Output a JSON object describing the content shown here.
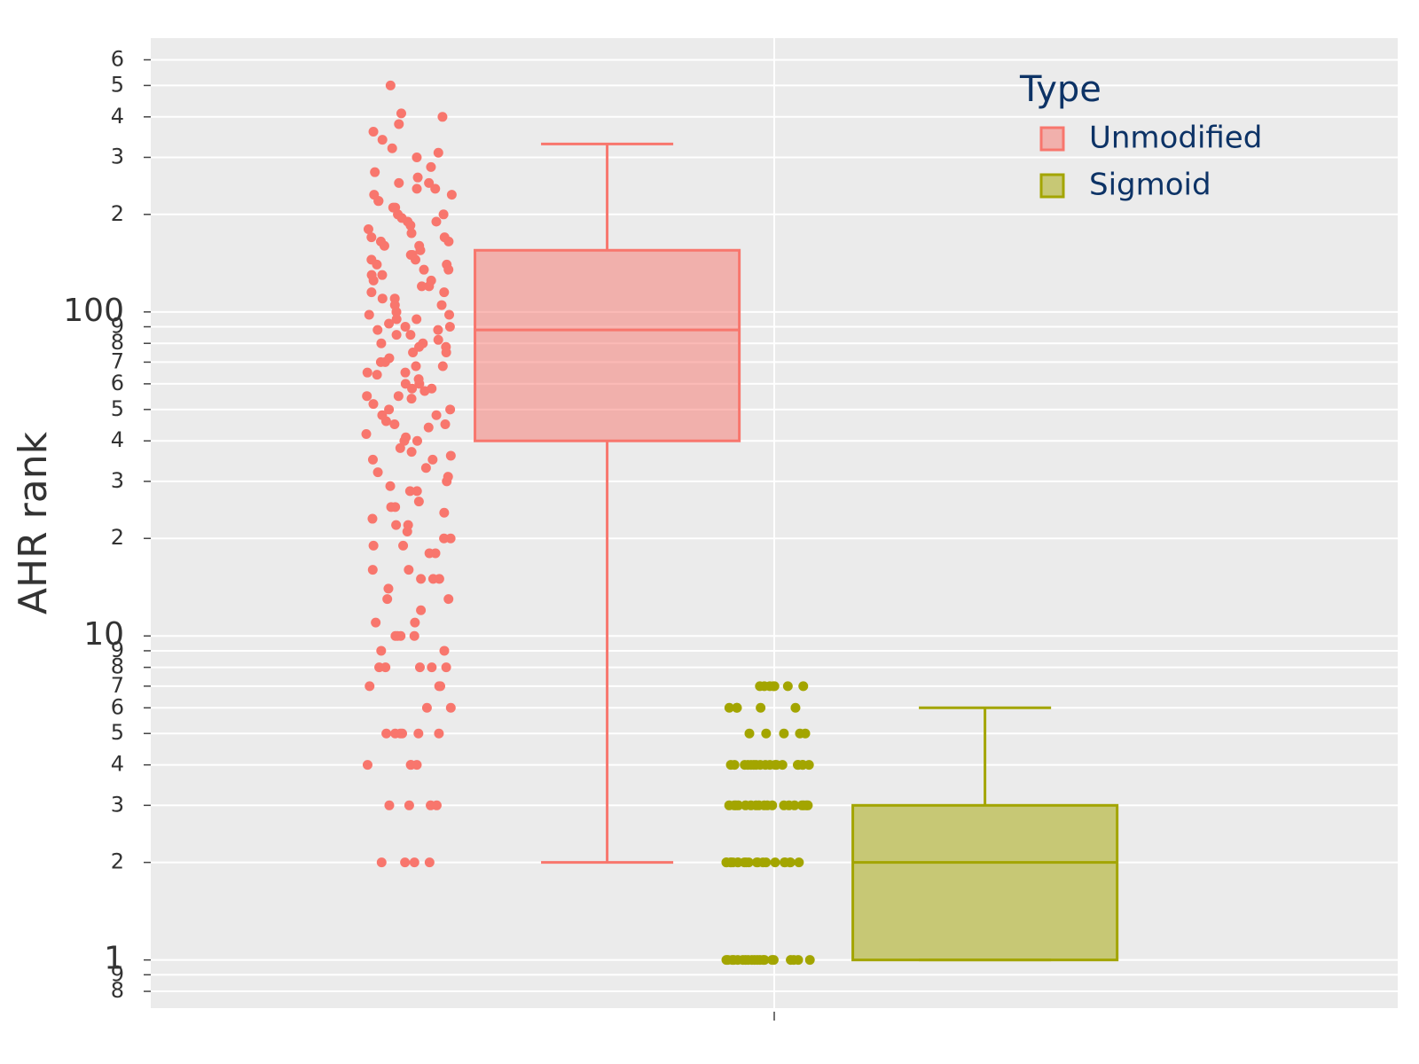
{
  "chart_data": {
    "type": "box",
    "y_label": "AHR rank",
    "legend_title": "Type",
    "legend_position": "top-right",
    "log_y": true,
    "grid": true,
    "categories": [
      null
    ],
    "ylim": [
      0.71,
      700
    ],
    "yticks": [
      {
        "value": 0.8,
        "label": "8"
      },
      {
        "value": 0.9,
        "label": "9"
      },
      1,
      2,
      3,
      4,
      5,
      6,
      7,
      8,
      9,
      10,
      {
        "value": 20,
        "label": "2"
      },
      {
        "value": 30,
        "label": "3"
      },
      {
        "value": 40,
        "label": "4"
      },
      {
        "value": 50,
        "label": "5"
      },
      {
        "value": 60,
        "label": "6"
      },
      {
        "value": 70,
        "label": "7"
      },
      {
        "value": 80,
        "label": "8"
      },
      {
        "value": 90,
        "label": "9"
      },
      100,
      {
        "value": 200,
        "label": "2"
      },
      {
        "value": 300,
        "label": "3"
      },
      {
        "value": 400,
        "label": "4"
      },
      {
        "value": 500,
        "label": "5"
      },
      {
        "value": 600,
        "label": "6"
      }
    ],
    "series": [
      {
        "name": "Unmodified",
        "color": "#F8766D",
        "lower": 2,
        "q1": 40,
        "median": 88,
        "q3": 155,
        "upper": 330,
        "points": [
          2,
          2,
          2,
          2,
          3,
          3,
          3,
          3,
          4,
          4,
          4,
          4,
          5,
          5,
          5,
          5,
          5,
          5,
          6,
          6,
          7,
          7,
          7,
          8,
          8,
          8,
          8,
          8,
          9,
          9,
          10,
          10,
          10,
          10,
          11,
          11,
          12,
          13,
          13,
          14,
          15,
          15,
          15,
          16,
          16,
          18,
          18,
          19,
          19,
          20,
          20,
          21,
          22,
          22,
          23,
          24,
          25,
          25,
          26,
          28,
          28,
          29,
          30,
          31,
          32,
          33,
          35,
          36,
          37,
          38,
          40,
          40,
          41,
          42,
          44,
          45,
          46,
          48,
          50,
          50,
          52,
          54,
          55,
          57,
          58,
          60,
          62,
          64,
          65,
          68,
          70,
          72,
          75,
          78,
          80,
          82,
          85,
          88,
          90,
          92,
          95,
          98,
          100,
          105,
          110,
          115,
          120,
          125,
          130,
          135,
          140,
          145,
          150,
          155,
          160,
          165,
          170,
          180,
          190,
          200,
          210,
          220,
          230,
          240,
          250,
          260,
          280,
          300,
          320,
          340,
          360,
          380,
          400,
          410,
          500,
          55,
          65,
          75,
          85,
          95,
          105,
          115,
          125,
          135,
          145,
          160,
          175,
          190,
          210,
          230,
          250,
          45,
          60,
          70,
          80,
          90,
          110,
          130,
          150,
          170,
          185,
          200,
          220,
          35,
          48,
          58,
          68,
          78,
          88,
          98,
          120,
          140,
          165,
          195,
          240,
          270,
          310
        ]
      },
      {
        "name": "Sigmoid",
        "color": "#A3A500",
        "lower": 1,
        "q1": 1,
        "median": 2,
        "q3": 3,
        "upper": 6,
        "points": [
          1,
          1,
          1,
          1,
          1,
          1,
          1,
          1,
          1,
          1,
          1,
          1,
          1,
          1,
          1,
          1,
          1,
          1,
          1,
          1,
          2,
          2,
          2,
          2,
          2,
          2,
          2,
          2,
          2,
          2,
          2,
          2,
          2,
          2,
          2,
          2,
          2,
          2,
          2,
          2,
          3,
          3,
          3,
          3,
          3,
          3,
          3,
          3,
          3,
          3,
          3,
          3,
          3,
          3,
          3,
          3,
          3,
          3,
          4,
          4,
          4,
          4,
          4,
          4,
          4,
          4,
          4,
          4,
          4,
          4,
          4,
          4,
          4,
          4,
          4,
          4,
          5,
          5,
          5,
          5,
          5,
          6,
          6,
          6,
          6,
          6,
          7,
          7,
          7,
          7,
          7,
          7,
          7
        ]
      }
    ]
  }
}
